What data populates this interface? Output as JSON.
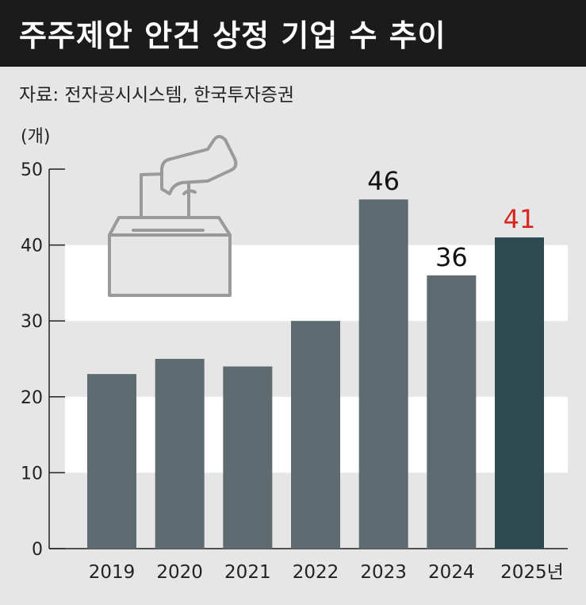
{
  "header": {
    "title": "주주제안 안건 상정 기업 수 추이"
  },
  "source": "자료: 전자공시시스템, 한국투자증권",
  "chart_data": {
    "type": "bar",
    "unit": "(개)",
    "categories": [
      "2019",
      "2020",
      "2021",
      "2022",
      "2023",
      "2024",
      "2025년"
    ],
    "values": [
      23,
      25,
      24,
      30,
      46,
      36,
      41
    ],
    "data_labels": [
      null,
      null,
      null,
      null,
      "46",
      "36",
      "41"
    ],
    "ylim": [
      0,
      50
    ],
    "yticks": [
      "0",
      "10",
      "20",
      "30",
      "40",
      "50"
    ],
    "colors": {
      "bar": "#5e6b70",
      "bar_highlight": "#2c4a50",
      "label": "#111111",
      "label_highlight": "#d7261e",
      "band": "#ffffff",
      "background": "#e6e6e6"
    },
    "illustration": "ballot-box-icon"
  }
}
